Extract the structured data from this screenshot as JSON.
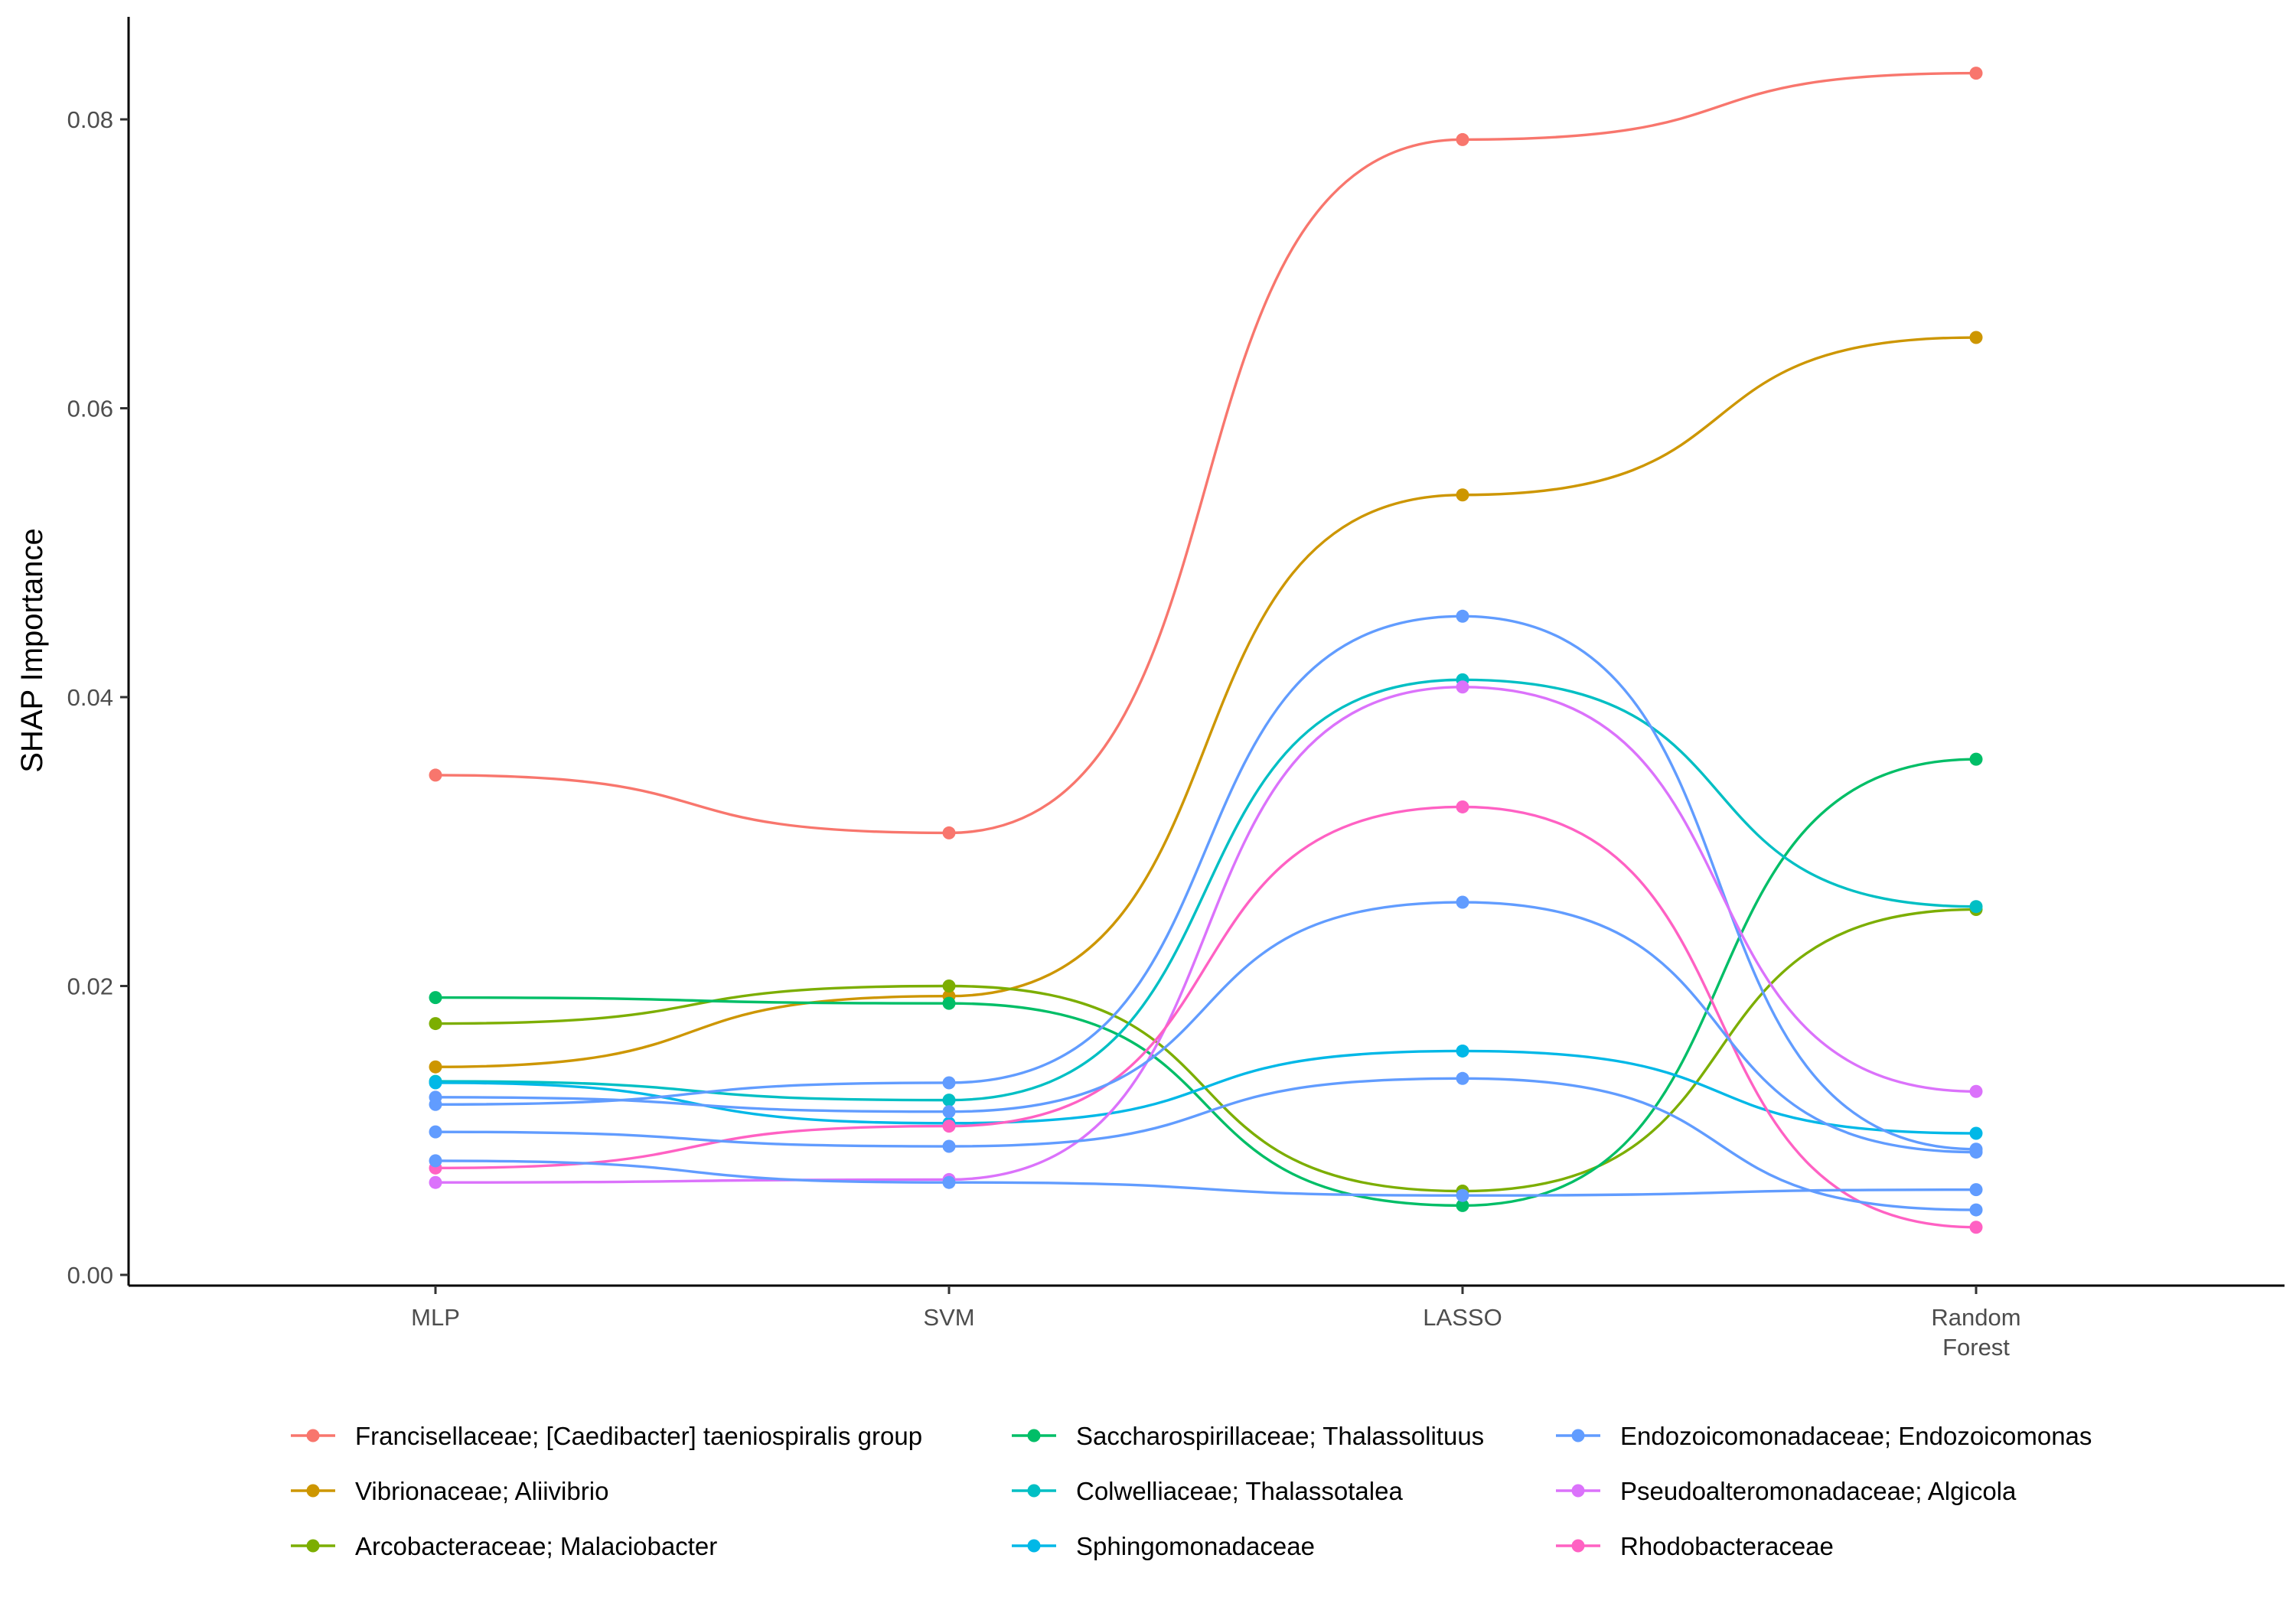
{
  "chart_data": {
    "type": "line",
    "title": "",
    "xlabel": "",
    "ylabel": "SHAP Importance",
    "categories": [
      "MLP",
      "SVM",
      "LASSO",
      "Random Forest"
    ],
    "category_lines": [
      [
        "MLP"
      ],
      [
        "SVM"
      ],
      [
        "LASSO"
      ],
      [
        "Random",
        "Forest"
      ]
    ],
    "ylim": [
      0,
      0.087
    ],
    "yticks": [
      0.0,
      0.02,
      0.04,
      0.06,
      0.08
    ],
    "ytick_labels": [
      "0.00",
      "0.02",
      "0.04",
      "0.06",
      "0.08"
    ],
    "grid": false,
    "legend_position": "bottom",
    "series": [
      {
        "name": "Francisellaceae; [Caedibacter] taeniospiralis group",
        "color": "#F8766D",
        "values": [
          0.0346,
          0.0306,
          0.0786,
          0.0832
        ]
      },
      {
        "name": "Vibrionaceae; Aliivibrio",
        "color": "#CD9600",
        "values": [
          0.0144,
          0.0193,
          0.054,
          0.0649
        ]
      },
      {
        "name": "Arcobacteraceae; Malaciobacter",
        "color": "#7CAE00",
        "values": [
          0.0174,
          0.02,
          0.0058,
          0.0253
        ]
      },
      {
        "name": "Saccharospirillaceae; Thalassolituus",
        "color": "#00BE67",
        "values": [
          0.0192,
          0.0188,
          0.0048,
          0.0357
        ]
      },
      {
        "name": "Colwelliaceae; Thalassotalea",
        "color": "#00BFC4",
        "values": [
          0.0134,
          0.0121,
          0.0412,
          0.0255
        ],
        "color_note": "teal"
      },
      {
        "name": "Sphingomonadaceae",
        "color": "#00B8E7",
        "values": [
          0.0133,
          0.0105,
          0.0155,
          0.0098
        ]
      },
      {
        "name": "Endozoicomonadaceae; Endozoicomonas",
        "color": "#619CFF",
        "values": [
          0.0118,
          0.0133,
          0.0456,
          0.0087
        ]
      },
      {
        "name": "Pseudoalteromonadaceae; Algicola",
        "color": "#DB72FB",
        "values": [
          0.0064,
          0.0066,
          0.0407,
          0.0127
        ]
      },
      {
        "name": "Rhodobacteraceae",
        "color": "#FF61C3",
        "values": [
          0.0074,
          0.0103,
          0.0324,
          0.0033
        ]
      }
    ],
    "extra_series": [
      {
        "color": "#619CFF",
        "values": [
          0.0123,
          0.0113,
          0.0258,
          0.0085
        ]
      },
      {
        "color": "#619CFF",
        "values": [
          0.0099,
          0.0089,
          0.0136,
          0.0045
        ]
      },
      {
        "color": "#619CFF",
        "values": [
          0.0079,
          0.0064,
          0.0055,
          0.0059
        ]
      }
    ]
  }
}
